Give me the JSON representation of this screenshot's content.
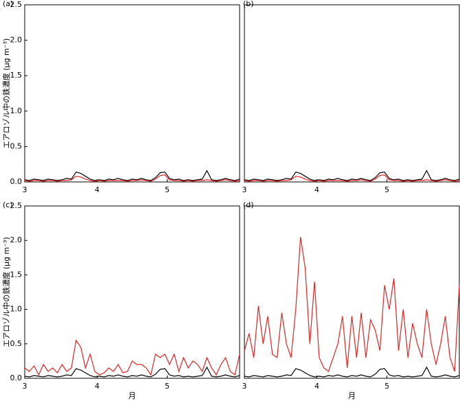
{
  "chart_data": [
    {
      "type": "line",
      "title": "(a)",
      "ylabel": "エアロゾル中の鉄濃度 (μg m⁻³)",
      "x": [
        0,
        2,
        4,
        6,
        8,
        10,
        12,
        14,
        16,
        18,
        20,
        22,
        24,
        26,
        28,
        30,
        32,
        34,
        36,
        38,
        40,
        42,
        44,
        46,
        48,
        50,
        52,
        54,
        56,
        58,
        60,
        62,
        64,
        66,
        68,
        70,
        72,
        74,
        76,
        78,
        80,
        82,
        84,
        86,
        88,
        90,
        92
      ],
      "series": [
        {
          "color": "#000000",
          "values": [
            0.03,
            0.02,
            0.04,
            0.03,
            0.02,
            0.04,
            0.03,
            0.02,
            0.03,
            0.05,
            0.04,
            0.14,
            0.12,
            0.08,
            0.04,
            0.02,
            0.03,
            0.02,
            0.04,
            0.03,
            0.05,
            0.03,
            0.02,
            0.04,
            0.03,
            0.05,
            0.03,
            0.02,
            0.06,
            0.13,
            0.14,
            0.05,
            0.03,
            0.04,
            0.02,
            0.03,
            0.02,
            0.03,
            0.04,
            0.16,
            0.03,
            0.02,
            0.03,
            0.05,
            0.03,
            0.02,
            0.04
          ]
        },
        {
          "color": "#e8201e",
          "values": [
            0.02,
            0.01,
            0.02,
            0.02,
            0.01,
            0.02,
            0.02,
            0.01,
            0.02,
            0.02,
            0.03,
            0.08,
            0.07,
            0.04,
            0.02,
            0.01,
            0.02,
            0.01,
            0.02,
            0.02,
            0.02,
            0.02,
            0.01,
            0.02,
            0.02,
            0.03,
            0.02,
            0.01,
            0.04,
            0.09,
            0.1,
            0.03,
            0.02,
            0.02,
            0.01,
            0.02,
            0.01,
            0.02,
            0.02,
            0.03,
            0.02,
            0.01,
            0.02,
            0.03,
            0.02,
            0.01,
            0.02
          ]
        }
      ],
      "xlim": [
        0,
        92
      ],
      "xticks": [
        {
          "value": 0,
          "label": "3"
        },
        {
          "value": 31,
          "label": "4"
        },
        {
          "value": 61,
          "label": "5"
        }
      ],
      "ylim": [
        0,
        2.5
      ],
      "yticks": [
        {
          "value": 0,
          "label": "0.0"
        },
        0.5,
        {
          "value": 1,
          "label": "1.0"
        },
        1.5,
        {
          "value": 2,
          "label": "2.0"
        },
        2.5
      ]
    },
    {
      "type": "line",
      "title": "(b)",
      "x": [
        0,
        2,
        4,
        6,
        8,
        10,
        12,
        14,
        16,
        18,
        20,
        22,
        24,
        26,
        28,
        30,
        32,
        34,
        36,
        38,
        40,
        42,
        44,
        46,
        48,
        50,
        52,
        54,
        56,
        58,
        60,
        62,
        64,
        66,
        68,
        70,
        72,
        74,
        76,
        78,
        80,
        82,
        84,
        86,
        88,
        90,
        92
      ],
      "series": [
        {
          "color": "#000000",
          "values": [
            0.03,
            0.02,
            0.04,
            0.03,
            0.02,
            0.04,
            0.03,
            0.02,
            0.03,
            0.05,
            0.04,
            0.14,
            0.12,
            0.08,
            0.04,
            0.02,
            0.03,
            0.02,
            0.04,
            0.03,
            0.05,
            0.03,
            0.02,
            0.04,
            0.03,
            0.05,
            0.03,
            0.02,
            0.06,
            0.13,
            0.14,
            0.05,
            0.03,
            0.04,
            0.02,
            0.03,
            0.02,
            0.03,
            0.04,
            0.16,
            0.03,
            0.02,
            0.03,
            0.05,
            0.03,
            0.02,
            0.04
          ]
        },
        {
          "color": "#e8201e",
          "values": [
            0.02,
            0.01,
            0.02,
            0.02,
            0.01,
            0.02,
            0.02,
            0.01,
            0.02,
            0.02,
            0.03,
            0.08,
            0.07,
            0.04,
            0.02,
            0.01,
            0.02,
            0.01,
            0.02,
            0.02,
            0.02,
            0.02,
            0.01,
            0.02,
            0.02,
            0.03,
            0.02,
            0.01,
            0.04,
            0.09,
            0.1,
            0.03,
            0.02,
            0.02,
            0.01,
            0.02,
            0.01,
            0.02,
            0.02,
            0.03,
            0.02,
            0.01,
            0.02,
            0.03,
            0.02,
            0.01,
            0.02
          ]
        }
      ],
      "xlim": [
        0,
        92
      ],
      "xticks": [
        {
          "value": 0,
          "label": "3"
        },
        {
          "value": 31,
          "label": "4"
        },
        {
          "value": 61,
          "label": "5"
        }
      ],
      "ylim": [
        0,
        2.5
      ]
    },
    {
      "type": "line",
      "title": "(c)",
      "ylabel": "エアロゾル中の鉄濃度 (μg m⁻³)",
      "xlabel": "月",
      "x": [
        0,
        2,
        4,
        6,
        8,
        10,
        12,
        14,
        16,
        18,
        20,
        22,
        24,
        26,
        28,
        30,
        32,
        34,
        36,
        38,
        40,
        42,
        44,
        46,
        48,
        50,
        52,
        54,
        56,
        58,
        60,
        62,
        64,
        66,
        68,
        70,
        72,
        74,
        76,
        78,
        80,
        82,
        84,
        86,
        88,
        90,
        92
      ],
      "series": [
        {
          "color": "#000000",
          "values": [
            0.03,
            0.02,
            0.04,
            0.03,
            0.02,
            0.04,
            0.03,
            0.02,
            0.03,
            0.05,
            0.04,
            0.14,
            0.12,
            0.08,
            0.04,
            0.02,
            0.03,
            0.02,
            0.04,
            0.03,
            0.05,
            0.03,
            0.02,
            0.04,
            0.03,
            0.05,
            0.03,
            0.02,
            0.06,
            0.13,
            0.14,
            0.05,
            0.03,
            0.04,
            0.02,
            0.03,
            0.02,
            0.03,
            0.04,
            0.16,
            0.03,
            0.02,
            0.03,
            0.05,
            0.03,
            0.02,
            0.04
          ]
        },
        {
          "color": "#e8201e",
          "values": [
            0.15,
            0.1,
            0.18,
            0.05,
            0.2,
            0.1,
            0.15,
            0.08,
            0.2,
            0.1,
            0.15,
            0.55,
            0.45,
            0.15,
            0.35,
            0.1,
            0.05,
            0.08,
            0.15,
            0.1,
            0.2,
            0.08,
            0.1,
            0.25,
            0.2,
            0.2,
            0.15,
            0.05,
            0.35,
            0.3,
            0.35,
            0.2,
            0.35,
            0.1,
            0.3,
            0.15,
            0.25,
            0.2,
            0.1,
            0.3,
            0.15,
            0.05,
            0.2,
            0.3,
            0.1,
            0.05,
            0.35
          ]
        }
      ],
      "xlim": [
        0,
        92
      ],
      "xticks": [
        {
          "value": 0,
          "label": "3"
        },
        {
          "value": 31,
          "label": "4"
        },
        {
          "value": 61,
          "label": "5"
        }
      ],
      "ylim": [
        0,
        2.5
      ],
      "yticks": [
        {
          "value": 0,
          "label": "0.0"
        },
        0.5,
        {
          "value": 1,
          "label": "1.0"
        },
        1.5,
        {
          "value": 2,
          "label": "2.0"
        },
        2.5
      ]
    },
    {
      "type": "line",
      "title": "(d)",
      "xlabel": "月",
      "x": [
        0,
        2,
        4,
        6,
        8,
        10,
        12,
        14,
        16,
        18,
        20,
        22,
        24,
        26,
        28,
        30,
        32,
        34,
        36,
        38,
        40,
        42,
        44,
        46,
        48,
        50,
        52,
        54,
        56,
        58,
        60,
        62,
        64,
        66,
        68,
        70,
        72,
        74,
        76,
        78,
        80,
        82,
        84,
        86,
        88,
        90,
        92
      ],
      "series": [
        {
          "color": "#000000",
          "values": [
            0.03,
            0.02,
            0.04,
            0.03,
            0.02,
            0.04,
            0.03,
            0.02,
            0.03,
            0.05,
            0.04,
            0.14,
            0.12,
            0.08,
            0.04,
            0.02,
            0.03,
            0.02,
            0.04,
            0.03,
            0.05,
            0.03,
            0.02,
            0.04,
            0.03,
            0.05,
            0.03,
            0.02,
            0.06,
            0.13,
            0.14,
            0.05,
            0.03,
            0.04,
            0.02,
            0.03,
            0.02,
            0.03,
            0.04,
            0.16,
            0.03,
            0.02,
            0.03,
            0.05,
            0.03,
            0.02,
            0.04
          ]
        },
        {
          "color": "#e8201e",
          "values": [
            0.4,
            0.65,
            0.3,
            1.05,
            0.5,
            0.9,
            0.35,
            0.3,
            0.95,
            0.5,
            0.3,
            1.0,
            2.05,
            1.6,
            0.5,
            1.4,
            0.3,
            0.15,
            0.1,
            0.3,
            0.5,
            0.9,
            0.15,
            0.9,
            0.3,
            0.95,
            0.3,
            0.85,
            0.7,
            0.4,
            1.35,
            1.0,
            1.45,
            0.4,
            1.0,
            0.3,
            0.8,
            0.5,
            0.3,
            1.0,
            0.5,
            0.2,
            0.5,
            0.9,
            0.3,
            0.1,
            1.35
          ]
        }
      ],
      "xlim": [
        0,
        92
      ],
      "xticks": [
        {
          "value": 0,
          "label": "3"
        },
        {
          "value": 31,
          "label": "4"
        },
        {
          "value": 61,
          "label": "5"
        }
      ],
      "ylim": [
        0,
        2.5
      ]
    }
  ]
}
